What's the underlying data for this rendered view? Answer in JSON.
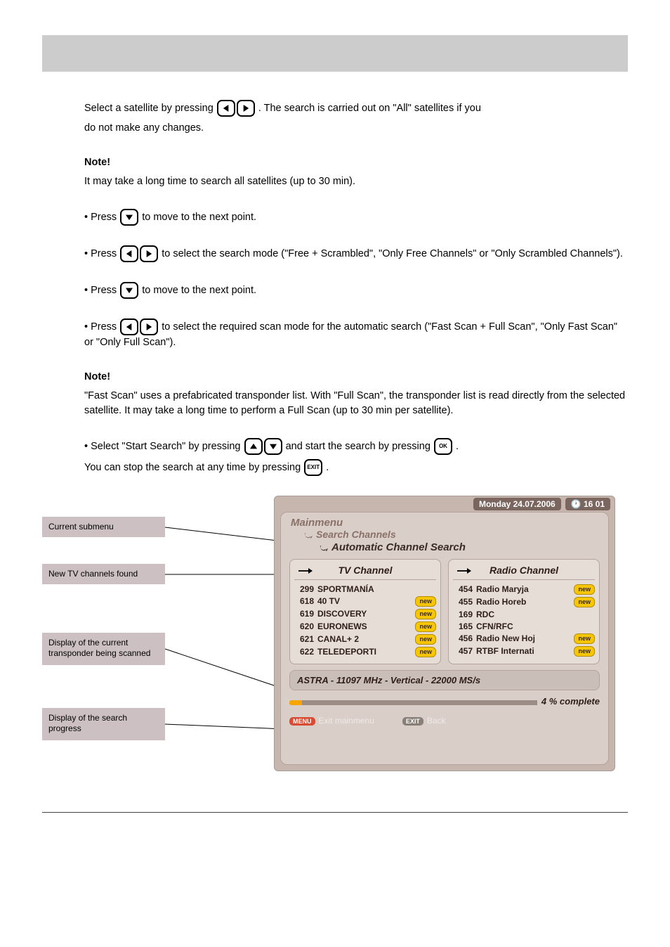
{
  "instructions": {
    "p1a": "Select a satellite by pressing",
    "p1b": ". The search is carried out on \"All\" satellites if you",
    "p1c": "do not make any changes.",
    "note_title": "Note!",
    "note_body": "It may take a long time to search all satellites (up to 30 min).",
    "p2_lead": "• Press",
    "p2_tail": " to move to the next point.",
    "p3a": "• Press",
    "p3b": " to select the search mode (\"Free + Scrambled\", \"Only Free Channels\" or \"Only Scrambled Channels\").",
    "p4_lead": "• Press",
    "p4_tail": " to move to the next point.",
    "p5a": "• Press",
    "p5b": " to select the required scan mode for the automatic search (\"Fast Scan + Full Scan\", \"Only Fast Scan\" or \"Only Full Scan\").",
    "note2a": "\"Fast Scan\" uses a prefabricated transponder list. With \"Full Scan\", the transponder list is read directly from the selected satellite. It may take a long time to perform a Full Scan (up to 30 min per satellite).",
    "p6a": "• Select \"Start Search\" by pressing",
    "p6b": " and start the search by pressing",
    "p6c": ".",
    "p7a": "  You can stop the search at any time by pressing",
    "p7b": "."
  },
  "labels": {
    "box1": "Current submenu",
    "box2": "New TV channels found",
    "box3": "Display of the current transponder being scanned",
    "box4": "Display of the search progress"
  },
  "tv": {
    "date": "Monday 24.07.2006",
    "time": "16 01",
    "bc1": "Mainmenu",
    "bc2": "Search Channels",
    "bc3": "Automatic Channel Search",
    "panel_left_title": "TV Channel",
    "panel_right_title": "Radio Channel",
    "tv_channels": [
      {
        "num": "299",
        "name": "SPORTMANÍA",
        "new": false
      },
      {
        "num": "618",
        "name": "40 TV",
        "new": true
      },
      {
        "num": "619",
        "name": "DISCOVERY",
        "new": true
      },
      {
        "num": "620",
        "name": "EURONEWS",
        "new": true
      },
      {
        "num": "621",
        "name": "CANAL+ 2",
        "new": true
      },
      {
        "num": "622",
        "name": "TELEDEPORTI",
        "new": true
      }
    ],
    "radio_channels": [
      {
        "num": "454",
        "name": "Radio Maryja",
        "new": true
      },
      {
        "num": "455",
        "name": "Radio Horeb",
        "new": true
      },
      {
        "num": "169",
        "name": "RDC",
        "new": false
      },
      {
        "num": "165",
        "name": "CFN/RFC",
        "new": false
      },
      {
        "num": "456",
        "name": "Radio New Hoj",
        "new": true
      },
      {
        "num": "457",
        "name": "RTBF Internati",
        "new": true
      }
    ],
    "status": "ASTRA - 11097 MHz - Vertical - 22000 MS/s",
    "progress_pct": 4,
    "progress_label": "4 % complete",
    "hint_menu": "MENU",
    "hint_menu_text": "Exit mainmenu",
    "hint_exit": "EXIT",
    "hint_exit_text": "Back",
    "new_badge": "new"
  },
  "colors": {
    "header_band": "#cccccc",
    "label_box": "#ccc0c3",
    "tv_outer": "#c7b6ae",
    "tv_inner": "#d9cec8",
    "badge": "#f7c600",
    "progress_fill": "#f7a600"
  }
}
